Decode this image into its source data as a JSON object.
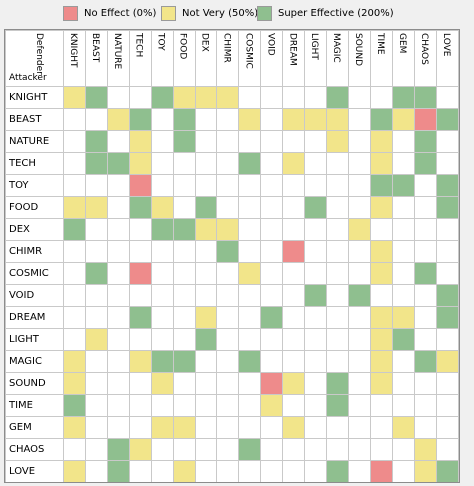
{
  "legend": [
    {
      "label": "No Effect (0%)",
      "color": "#ee8b8b"
    },
    {
      "label": "Not Very (50%)",
      "color": "#f2e58a"
    },
    {
      "label": "Super Effective (200%)",
      "color": "#8fbf8f"
    }
  ],
  "corner": {
    "defender": "Defender",
    "attacker": "Attacker"
  },
  "types": [
    "KNIGHT",
    "BEAST",
    "NATURE",
    "TECH",
    "TOY",
    "FOOD",
    "DEX",
    "CHIMR",
    "COSMIC",
    "VOID",
    "DREAM",
    "LIGHT",
    "MAGIC",
    "SOUND",
    "TIME",
    "GEM",
    "CHAOS",
    "LOVE"
  ],
  "matrix": [
    [
      1,
      2,
      0,
      0,
      2,
      1,
      1,
      1,
      0,
      0,
      0,
      0,
      2,
      0,
      0,
      2,
      2,
      0
    ],
    [
      0,
      0,
      1,
      2,
      0,
      2,
      0,
      0,
      1,
      0,
      1,
      1,
      1,
      0,
      2,
      1,
      3,
      2
    ],
    [
      0,
      2,
      0,
      1,
      0,
      2,
      0,
      0,
      0,
      0,
      0,
      0,
      1,
      0,
      1,
      0,
      2,
      0
    ],
    [
      0,
      2,
      2,
      1,
      0,
      0,
      0,
      0,
      2,
      0,
      1,
      0,
      0,
      0,
      1,
      0,
      2,
      0
    ],
    [
      0,
      0,
      0,
      3,
      0,
      0,
      0,
      0,
      0,
      0,
      0,
      0,
      0,
      0,
      2,
      2,
      0,
      2
    ],
    [
      1,
      1,
      0,
      2,
      1,
      0,
      2,
      0,
      0,
      0,
      0,
      2,
      0,
      0,
      1,
      0,
      0,
      2
    ],
    [
      2,
      0,
      0,
      0,
      2,
      2,
      1,
      1,
      0,
      0,
      0,
      0,
      0,
      1,
      0,
      0,
      0,
      0
    ],
    [
      0,
      0,
      0,
      0,
      0,
      0,
      0,
      2,
      0,
      0,
      3,
      0,
      0,
      0,
      1,
      0,
      0,
      0
    ],
    [
      0,
      2,
      0,
      3,
      0,
      0,
      0,
      0,
      1,
      0,
      0,
      0,
      0,
      0,
      1,
      0,
      2,
      0
    ],
    [
      0,
      0,
      0,
      0,
      0,
      0,
      0,
      0,
      0,
      0,
      0,
      2,
      0,
      2,
      0,
      0,
      0,
      2
    ],
    [
      0,
      0,
      0,
      2,
      0,
      0,
      1,
      0,
      0,
      2,
      0,
      0,
      0,
      0,
      1,
      1,
      0,
      2
    ],
    [
      0,
      1,
      0,
      0,
      0,
      0,
      2,
      0,
      0,
      0,
      0,
      0,
      0,
      0,
      1,
      2,
      0,
      0
    ],
    [
      1,
      0,
      0,
      1,
      2,
      2,
      0,
      0,
      2,
      0,
      0,
      0,
      0,
      0,
      1,
      0,
      2,
      1
    ],
    [
      1,
      0,
      0,
      0,
      1,
      0,
      0,
      0,
      0,
      3,
      1,
      0,
      2,
      0,
      1,
      0,
      0,
      0
    ],
    [
      2,
      0,
      0,
      0,
      0,
      0,
      0,
      0,
      0,
      1,
      0,
      0,
      2,
      0,
      0,
      0,
      0,
      0
    ],
    [
      1,
      0,
      0,
      0,
      1,
      1,
      0,
      0,
      0,
      0,
      1,
      0,
      0,
      0,
      0,
      1,
      0,
      0
    ],
    [
      0,
      0,
      2,
      1,
      0,
      0,
      0,
      0,
      2,
      0,
      0,
      0,
      0,
      0,
      0,
      0,
      1,
      0
    ],
    [
      1,
      0,
      2,
      0,
      0,
      1,
      0,
      0,
      0,
      0,
      0,
      0,
      2,
      0,
      3,
      0,
      1,
      2
    ]
  ]
}
